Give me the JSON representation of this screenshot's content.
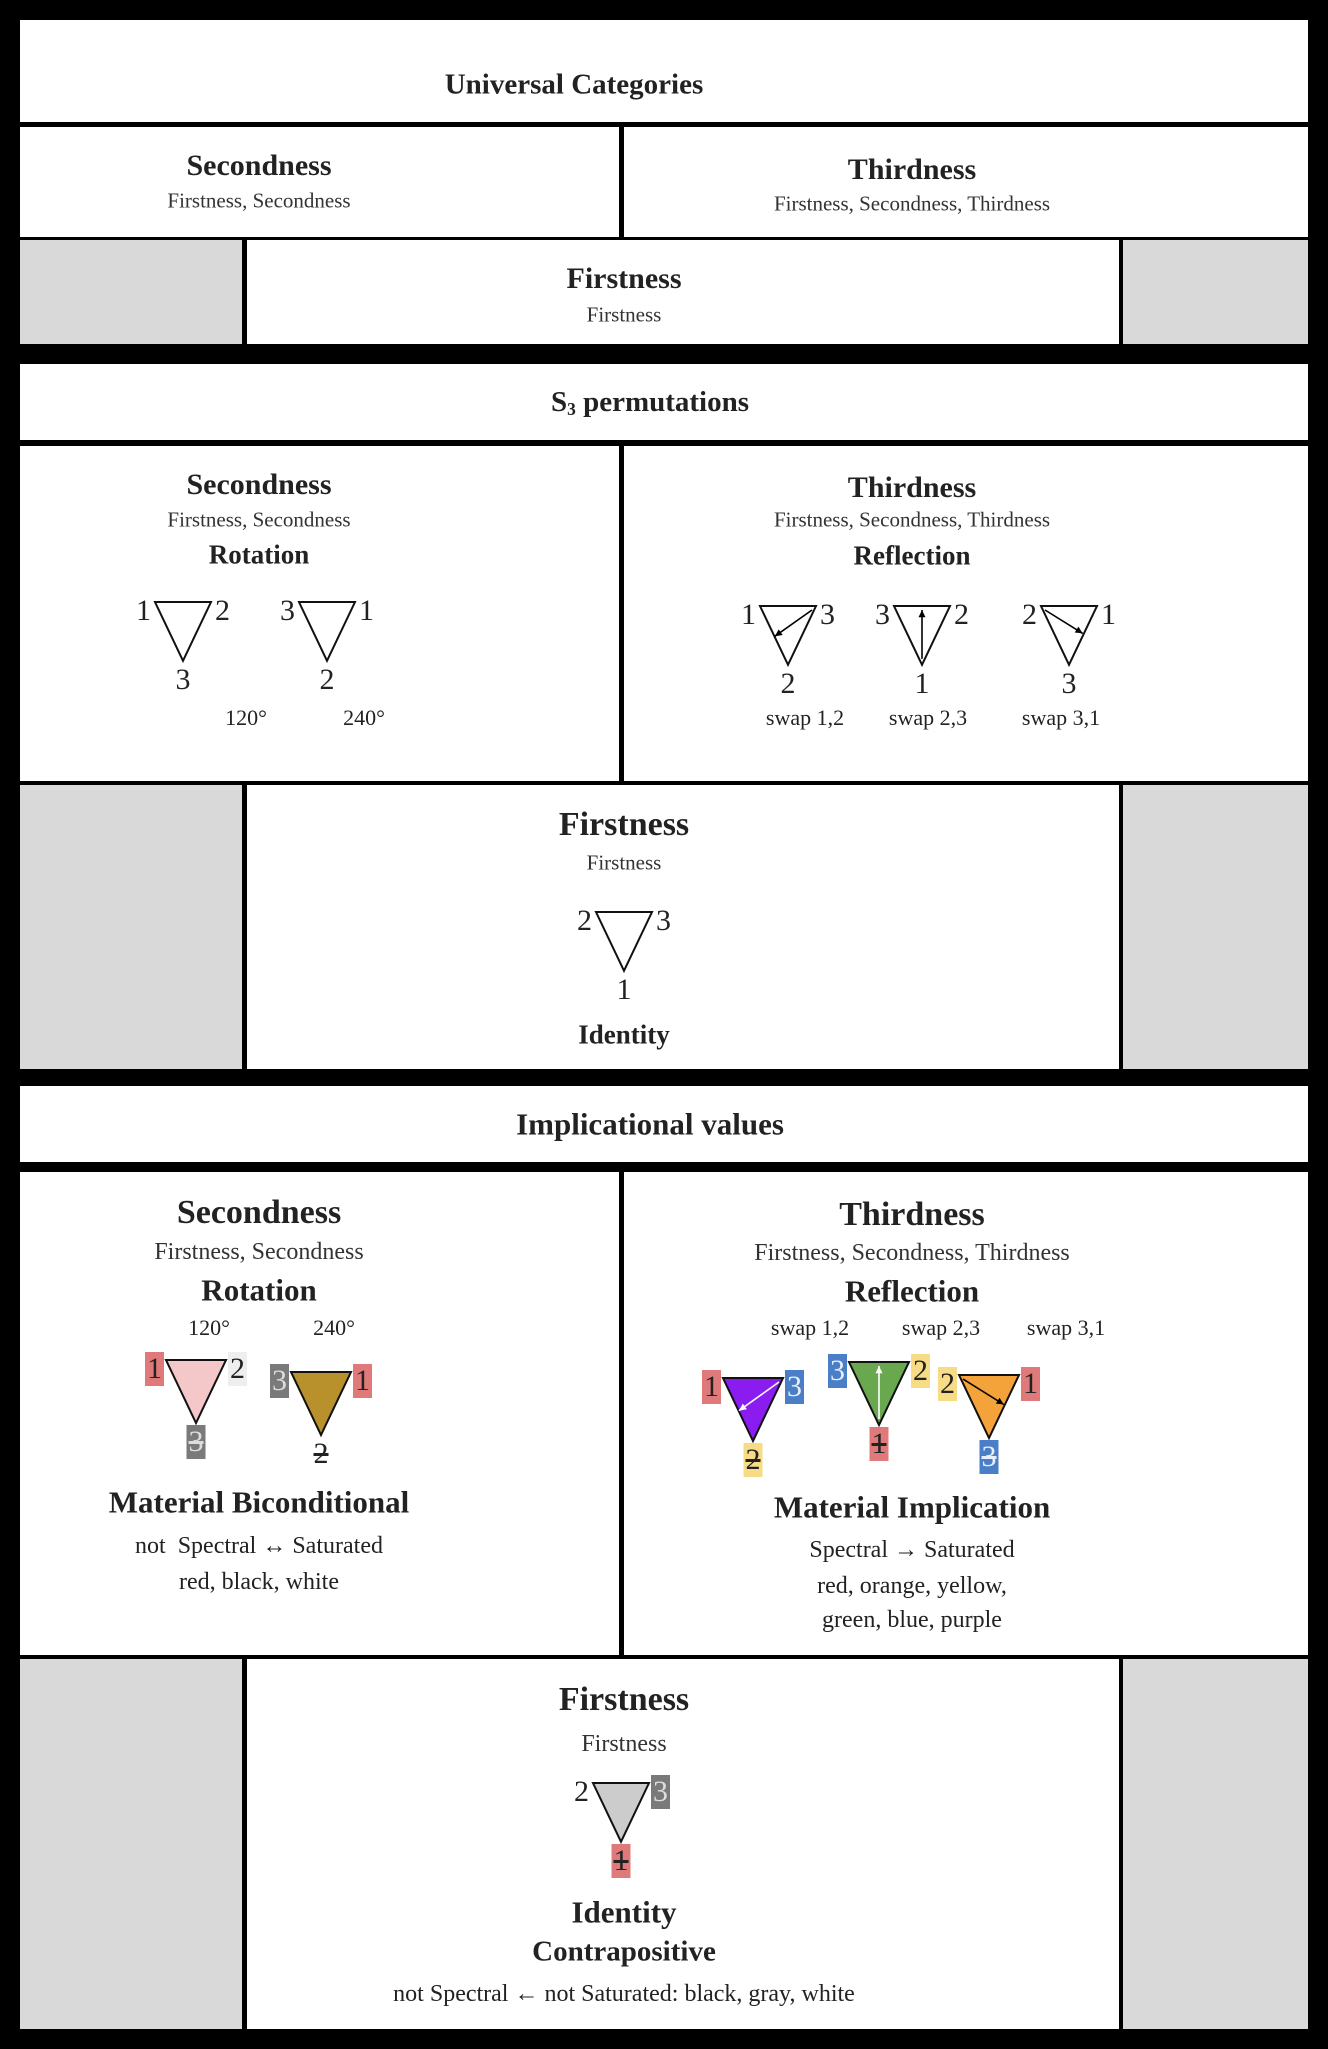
{
  "colors": {
    "frame": "#000000",
    "panel": "#ffffff",
    "empty_cell": "#d9d9d9"
  },
  "universal": {
    "title": "Universal Categories",
    "secondness": {
      "title": "Secondness",
      "subtitle": "Firstness, Secondness"
    },
    "thirdness": {
      "title": "Thirdness",
      "subtitle": "Firstness, Secondness, Thirdness"
    },
    "firstness": {
      "title": "Firstness",
      "subtitle": "Firstness"
    }
  },
  "s3": {
    "title_letter": "S",
    "title_subscript": "3",
    "title_rest": " permutations",
    "secondness": {
      "title": "Secondness",
      "subtitle": "Firstness, Secondness",
      "operation": "Rotation",
      "angles": [
        "120°",
        "240°"
      ],
      "triangles": [
        {
          "left": "1",
          "right": "2",
          "bottom": "3",
          "fill": "#ffffff"
        },
        {
          "left": "3",
          "right": "1",
          "bottom": "2",
          "fill": "#ffffff"
        }
      ]
    },
    "thirdness": {
      "title": "Thirdness",
      "subtitle": "Firstness, Secondness, Thirdness",
      "operation": "Reflection",
      "swaps": [
        "swap 1,2",
        "swap 2,3",
        "swap 3,1"
      ],
      "triangles": [
        {
          "left": "1",
          "right": "3",
          "bottom": "2",
          "fill": "#ffffff",
          "arrow": "right-to-left",
          "arrow_color": "#000000"
        },
        {
          "left": "3",
          "right": "2",
          "bottom": "1",
          "fill": "#ffffff",
          "arrow": "apex-up",
          "arrow_color": "#000000"
        },
        {
          "left": "2",
          "right": "1",
          "bottom": "3",
          "fill": "#ffffff",
          "arrow": "left-to-right",
          "arrow_color": "#000000"
        }
      ]
    },
    "firstness": {
      "title": "Firstness",
      "subtitle": "Firstness",
      "operation": "Identity",
      "triangles": [
        {
          "left": "2",
          "right": "3",
          "bottom": "1",
          "fill": "#ffffff"
        }
      ]
    }
  },
  "implicational": {
    "title": "Implicational values",
    "secondness": {
      "title": "Secondness",
      "subtitle": "Firstness, Secondness",
      "operation": "Rotation",
      "angles": [
        "120°",
        "240°"
      ],
      "triangles": [
        {
          "left": "1",
          "left_bg": "#e07a7a",
          "right": "2",
          "right_bg": "#eeeeee",
          "bottom": "3",
          "bottom_bg": "#7a7a7a",
          "bottom_color": "#dddddd",
          "bottom_strike": true,
          "fill": "#f4c7c9"
        },
        {
          "left": "3",
          "left_bg": "#7a7a7a",
          "left_color": "#dddddd",
          "right": "1",
          "right_bg": "#e07a7a",
          "bottom": "2",
          "bottom_strike": true,
          "fill": "#b8902c"
        }
      ],
      "logic": "Material Biconditional",
      "formula": "not  Spectral ↔ Saturated",
      "colors": "red, black, white"
    },
    "thirdness": {
      "title": "Thirdness",
      "subtitle": "Firstness, Secondness, Thirdness",
      "operation": "Reflection",
      "swaps": [
        "swap 1,2",
        "swap 2,3",
        "swap 3,1"
      ],
      "triangles": [
        {
          "left": "1",
          "left_bg": "#e07a7a",
          "right": "3",
          "right_bg": "#4a7fc8",
          "right_color": "#e8eefa",
          "bottom": "2",
          "bottom_bg": "#f7dc85",
          "bottom_strike": true,
          "fill": "#8b1cf0",
          "arrow": "right-to-left",
          "arrow_color": "#ffffff"
        },
        {
          "left": "3",
          "left_bg": "#4a7fc8",
          "left_color": "#e8eefa",
          "right": "2",
          "right_bg": "#f7dc85",
          "bottom": "1",
          "bottom_bg": "#e07a7a",
          "bottom_strike": true,
          "fill": "#6aa84f",
          "arrow": "apex-up",
          "arrow_color": "#ffffff"
        },
        {
          "left": "2",
          "left_bg": "#f7dc85",
          "right": "1",
          "right_bg": "#e07a7a",
          "bottom": "3",
          "bottom_bg": "#4a7fc8",
          "bottom_color": "#e8eefa",
          "bottom_strike": true,
          "fill": "#f4a23a",
          "arrow": "left-to-right",
          "arrow_color": "#000000"
        }
      ],
      "logic": "Material Implication",
      "formula": "Spectral → Saturated",
      "colors_line1": "red, orange, yellow,",
      "colors_line2": "green, blue, purple"
    },
    "firstness": {
      "title": "Firstness",
      "subtitle": "Firstness",
      "operation": "Identity",
      "triangles": [
        {
          "left": "2",
          "right": "3",
          "right_bg": "#7a7a7a",
          "right_color": "#dddddd",
          "bottom": "1",
          "bottom_bg": "#e07a7a",
          "bottom_strike": true,
          "fill": "#cccccc"
        }
      ],
      "logic": "Contrapositive",
      "formula": "not Spectral ← not Saturated: black, gray, white"
    }
  }
}
